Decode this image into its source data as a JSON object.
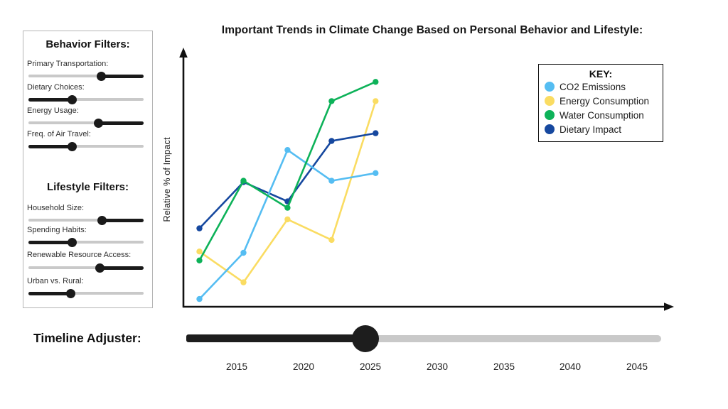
{
  "title": "Important Trends in Climate Change Based on Personal Behavior and Lifestyle:",
  "sidebar": {
    "behavior_title": "Behavior Filters:",
    "lifestyle_title": "Lifestyle Filters:",
    "behavior_filters": [
      {
        "label": "Primary Transportation:",
        "value": 0.63,
        "filled_side": "right"
      },
      {
        "label": "Dietary Choices:",
        "value": 0.38,
        "filled_side": "left"
      },
      {
        "label": "Energy Usage:",
        "value": 0.61,
        "filled_side": "right"
      },
      {
        "label": "Freq. of Air Travel:",
        "value": 0.38,
        "filled_side": "left"
      }
    ],
    "lifestyle_filters": [
      {
        "label": "Household Size:",
        "value": 0.64,
        "filled_side": "right"
      },
      {
        "label": "Spending Habits:",
        "value": 0.38,
        "filled_side": "left"
      },
      {
        "label": "Renewable Resource Access:",
        "value": 0.62,
        "filled_side": "right"
      },
      {
        "label": "Urban vs. Rural:",
        "value": 0.37,
        "filled_side": "left"
      }
    ]
  },
  "legend": {
    "title": "KEY:",
    "items": [
      {
        "label": "CO2 Emissions",
        "color": "#55BDF2"
      },
      {
        "label": "Energy Consumption",
        "color": "#FADC62"
      },
      {
        "label": "Water Consumption",
        "color": "#0DB259"
      },
      {
        "label": "Dietary Impact",
        "color": "#16489F"
      }
    ]
  },
  "chart_data": {
    "type": "line",
    "title": "Important Trends in Climate Change Based on Personal Behavior and Lifestyle:",
    "xlabel": "",
    "ylabel": "Relative % of Impact",
    "x": [
      2012.2,
      2015.5,
      2018.8,
      2022.1,
      2025.4
    ],
    "x_ticks": [
      2015,
      2020,
      2025,
      2030,
      2035,
      2040,
      2045
    ],
    "xlim": [
      2011,
      2047.7
    ],
    "ylim": [
      0,
      100
    ],
    "grid": false,
    "legend_position": "upper right",
    "series": [
      {
        "name": "CO2 Emissions",
        "color": "#55BDF2",
        "values": [
          3,
          21,
          61,
          49,
          52
        ]
      },
      {
        "name": "Energy Consumption",
        "color": "#FADC62",
        "values": [
          21.5,
          9.5,
          34,
          26,
          80
        ]
      },
      {
        "name": "Water Consumption",
        "color": "#0DB259",
        "values": [
          18,
          49,
          38.5,
          80,
          87.5
        ]
      },
      {
        "name": "Dietary Impact",
        "color": "#16489F",
        "values": [
          30.5,
          48.5,
          41,
          64.5,
          67.5
        ]
      }
    ],
    "draw_order": [
      1,
      3,
      0,
      2
    ]
  },
  "timeline": {
    "label": "Timeline Adjuster:",
    "value": 0.377
  }
}
